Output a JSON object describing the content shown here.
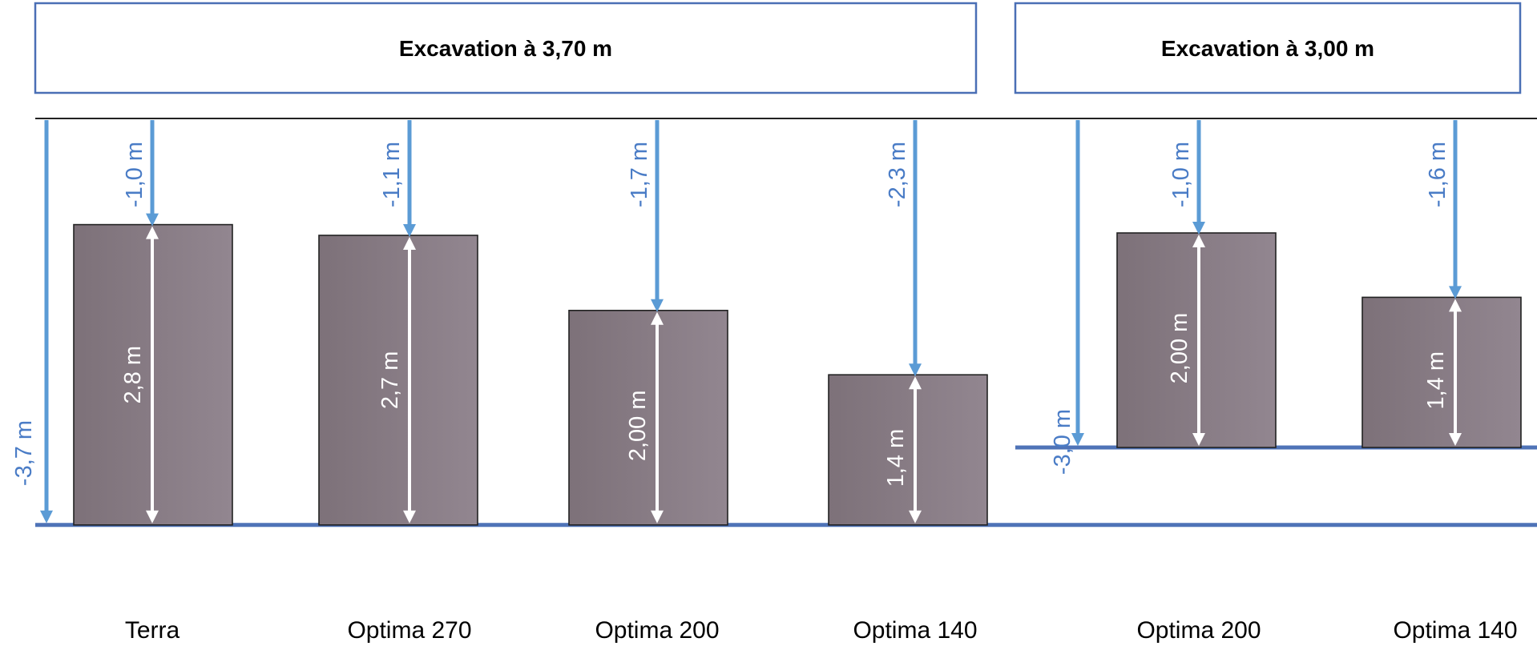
{
  "colors": {
    "header_border": "#4a6fb5",
    "floor": "#4f73b7",
    "depth_arrow": "#5b9bd5",
    "depth_label": "#4a7cc6",
    "product_fill_left": "#7d7179",
    "product_fill_right": "#928690",
    "height_arrow": "#ffffff"
  },
  "sections": [
    {
      "header": "Excavation à 3,70 m",
      "excavation_depth_m": 3.7,
      "total_label": "-3,7 m",
      "items": [
        {
          "name": "Terra",
          "height_m": 2.8,
          "height_label": "2,8 m",
          "top_depth_m": -1.0,
          "top_label": "-1,0 m"
        },
        {
          "name": "Optima 270",
          "height_m": 2.7,
          "height_label": "2,7 m",
          "top_depth_m": -1.1,
          "top_label": "-1,1 m"
        },
        {
          "name": "Optima 200",
          "height_m": 2.0,
          "height_label": "2,00 m",
          "top_depth_m": -1.7,
          "top_label": "-1,7 m"
        },
        {
          "name": "Optima 140",
          "height_m": 1.4,
          "height_label": "1,4 m",
          "top_depth_m": -2.3,
          "top_label": "-2,3 m"
        }
      ]
    },
    {
      "header": "Excavation à 3,00 m",
      "excavation_depth_m": 3.0,
      "total_label": "-3,0 m",
      "items": [
        {
          "name": "Optima 200",
          "height_m": 2.0,
          "height_label": "2,00 m",
          "top_depth_m": -1.0,
          "top_label": "-1,0 m"
        },
        {
          "name": "Optima 140",
          "height_m": 1.4,
          "height_label": "1,4 m",
          "top_depth_m": -1.6,
          "top_label": "-1,6 m"
        }
      ]
    }
  ]
}
